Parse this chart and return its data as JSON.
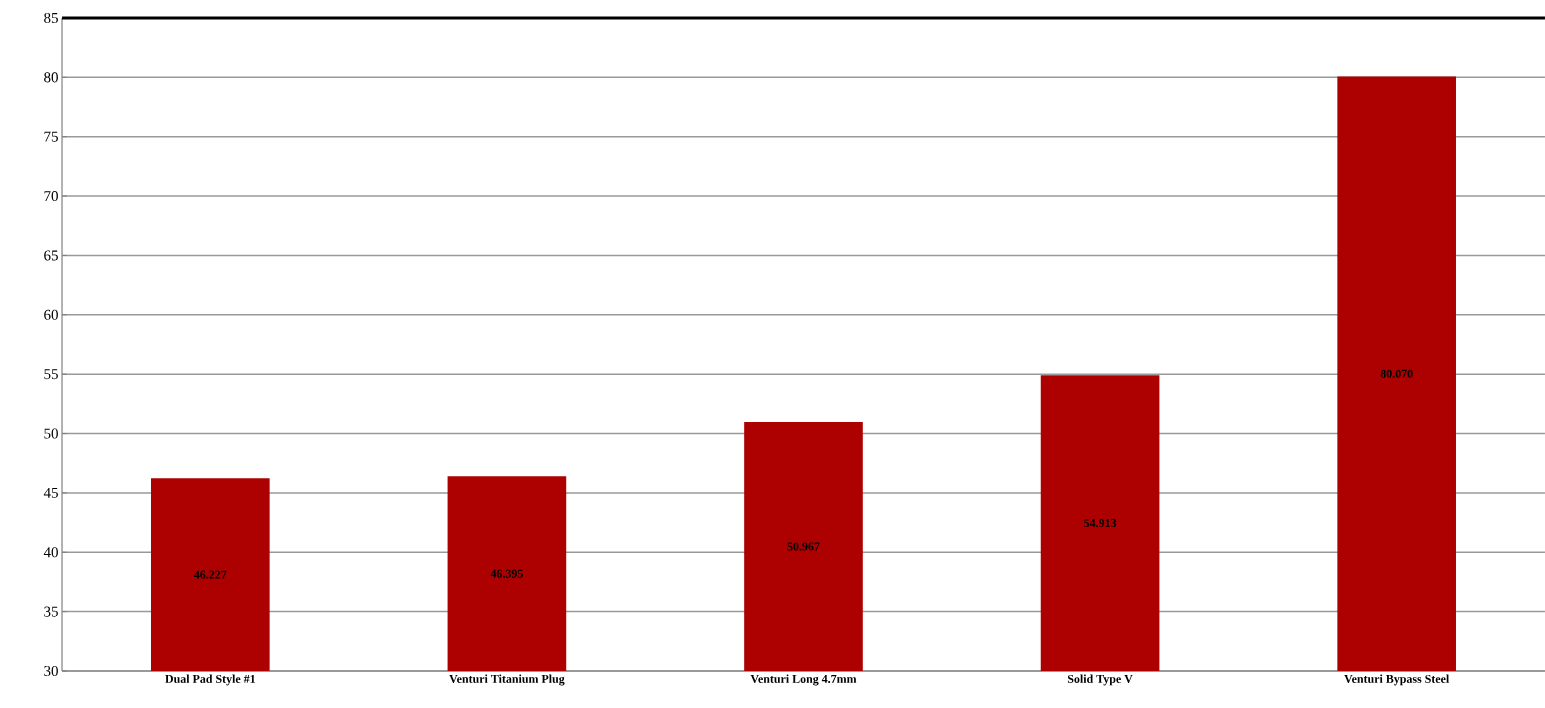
{
  "chart_data": {
    "type": "bar",
    "categories": [
      "Dual Pad Style #1",
      "Venturi Titanium Plug",
      "Venturi Long 4.7mm",
      "Solid Type V",
      "Venturi Bypass Steel"
    ],
    "values": [
      46.227,
      46.395,
      50.967,
      54.913,
      80.07
    ],
    "value_labels": [
      "46.227",
      "46.395",
      "50.967",
      "54.913",
      "80.070"
    ],
    "color": "#ad0000",
    "ylim": [
      30,
      85
    ],
    "yticks": [
      30,
      35,
      40,
      45,
      50,
      55,
      60,
      65,
      70,
      75,
      80,
      85
    ],
    "grid": "y"
  }
}
